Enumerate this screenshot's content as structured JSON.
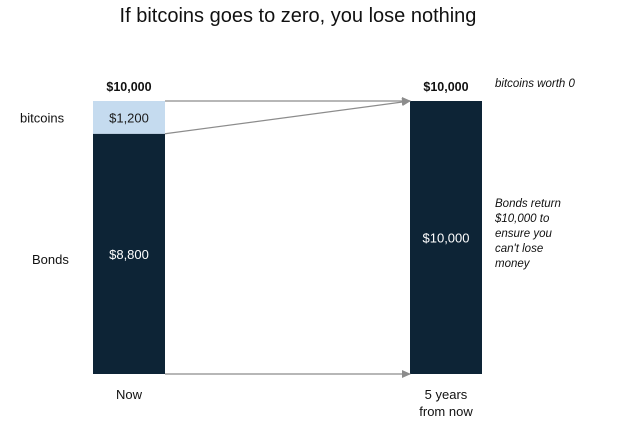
{
  "chart_data": {
    "type": "bar",
    "title": "If bitcoins goes to zero, you lose nothing",
    "categories": [
      "Now",
      "5 years from now"
    ],
    "category_lines": [
      [
        "Now"
      ],
      [
        "5 years",
        "from now"
      ]
    ],
    "series": [
      {
        "name": "Bonds",
        "values": [
          8800,
          10000
        ],
        "value_labels": [
          "$8,800",
          "$10,000"
        ]
      },
      {
        "name": "bitcoins",
        "values": [
          1200,
          0
        ],
        "value_labels": [
          "$1,200",
          ""
        ]
      }
    ],
    "totals": [
      "$10,000",
      "$10,000"
    ],
    "stacked": true,
    "ylim": [
      0,
      10000
    ],
    "annotations": {
      "bitcoins_note": "bitcoins worth 0",
      "bonds_note_lines": [
        "Bonds return",
        "$10,000 to",
        "ensure you",
        "can't lose",
        "money"
      ]
    },
    "colors": {
      "bonds": "#0d2436",
      "bitcoins": "#c5dbef",
      "arrow": "#8c8c8c"
    },
    "grid": false
  }
}
